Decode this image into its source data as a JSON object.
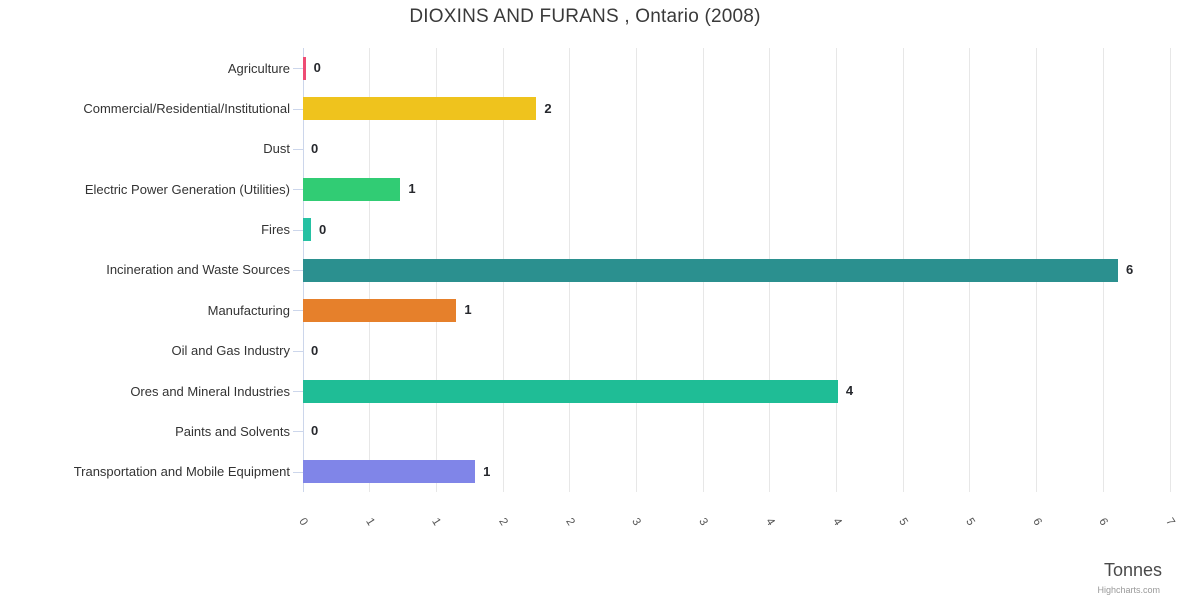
{
  "chart_data": {
    "type": "bar",
    "orientation": "horizontal",
    "title": "DIOXINS AND FURANS , Ontario (2008)",
    "categories": [
      "Agriculture",
      "Commercial/Residential/Institutional",
      "Dust",
      "Electric Power Generation (Utilities)",
      "Fires",
      "Incineration and Waste Sources",
      "Manufacturing",
      "Oil and Gas Industry",
      "Ores and Mineral Industries",
      "Paints and Solvents",
      "Transportation and Mobile Equipment"
    ],
    "values": [
      0.02,
      1.75,
      0,
      0.73,
      0.06,
      6.11,
      1.15,
      0,
      4.01,
      0,
      1.29
    ],
    "value_labels": [
      "0",
      "2",
      "0",
      "1",
      "0",
      "6",
      "1",
      "0",
      "4",
      "0",
      "1"
    ],
    "bar_colors": [
      "#ee4c74",
      "#efc31d",
      null,
      "#31cc74",
      "#25c1a3",
      "#2b908f",
      "#e6802b",
      null,
      "#1fbd96",
      null,
      "#8085e8"
    ],
    "xlabel": "Tonnes",
    "xlim": [
      0,
      6.5
    ],
    "x_ticks": [
      0,
      0.5,
      1,
      1.5,
      2,
      2.5,
      3,
      3.5,
      4,
      4.5,
      5,
      5.5,
      6,
      6.5
    ],
    "x_tick_labels": [
      "0",
      "1",
      "1",
      "2",
      "2",
      "3",
      "3",
      "4",
      "4",
      "5",
      "5",
      "6",
      "6",
      "7"
    ],
    "grid": true,
    "legend": "none",
    "style_colors": {
      "axis_line": "#ccd6eb",
      "gridline": "#e7e7e7",
      "y_tick": "#ccd6eb",
      "category_label": "#333333",
      "tick_label": "#555555",
      "data_label": "#26282d",
      "title": "#3a3a3a",
      "background": "#ffffff"
    },
    "credits": "Highcharts.com"
  }
}
